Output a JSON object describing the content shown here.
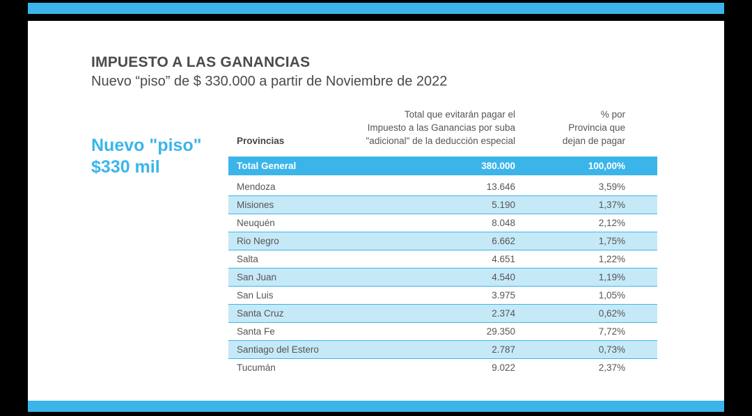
{
  "slide": {
    "title": "IMPUESTO A LAS GANANCIAS",
    "subtitle": "Nuevo “piso” de $ 330.000 a partir de Noviembre de 2022",
    "highlight_line1": "Nuevo \"piso\"",
    "highlight_line2": "$330 mil"
  },
  "table": {
    "headers": {
      "provincias": "Provincias",
      "total_line1": "Total que evitarán pagar el",
      "total_line2": "Impuesto a las Ganancias por suba",
      "total_line3": "\"adicional\" de la deducción especial",
      "pct_line1": "% por",
      "pct_line2": "Provincia que",
      "pct_line3": "dejan de pagar"
    },
    "total_row": {
      "label": "Total General",
      "total": "380.000",
      "pct": "100,00%"
    },
    "rows": [
      {
        "prov": "Mendoza",
        "total": "13.646",
        "pct": "3,59%"
      },
      {
        "prov": "Misiones",
        "total": "5.190",
        "pct": "1,37%"
      },
      {
        "prov": "Neuquén",
        "total": "8.048",
        "pct": "2,12%"
      },
      {
        "prov": "Rio Negro",
        "total": "6.662",
        "pct": "1,75%"
      },
      {
        "prov": "Salta",
        "total": "4.651",
        "pct": "1,22%"
      },
      {
        "prov": "San Juan",
        "total": "4.540",
        "pct": "1,19%"
      },
      {
        "prov": "San Luis",
        "total": "3.975",
        "pct": "1,05%"
      },
      {
        "prov": "Santa Cruz",
        "total": "2.374",
        "pct": "0,62%"
      },
      {
        "prov": "Santa Fe",
        "total": "29.350",
        "pct": "7,72%"
      },
      {
        "prov": "Santiago del Estero",
        "total": "2.787",
        "pct": "0,73%"
      },
      {
        "prov": "Tucumán",
        "total": "9.022",
        "pct": "2,37%"
      }
    ]
  },
  "colors": {
    "accent": "#3bb5e9",
    "row_alt": "#c6e9f8",
    "text": "#4a4a4a"
  }
}
